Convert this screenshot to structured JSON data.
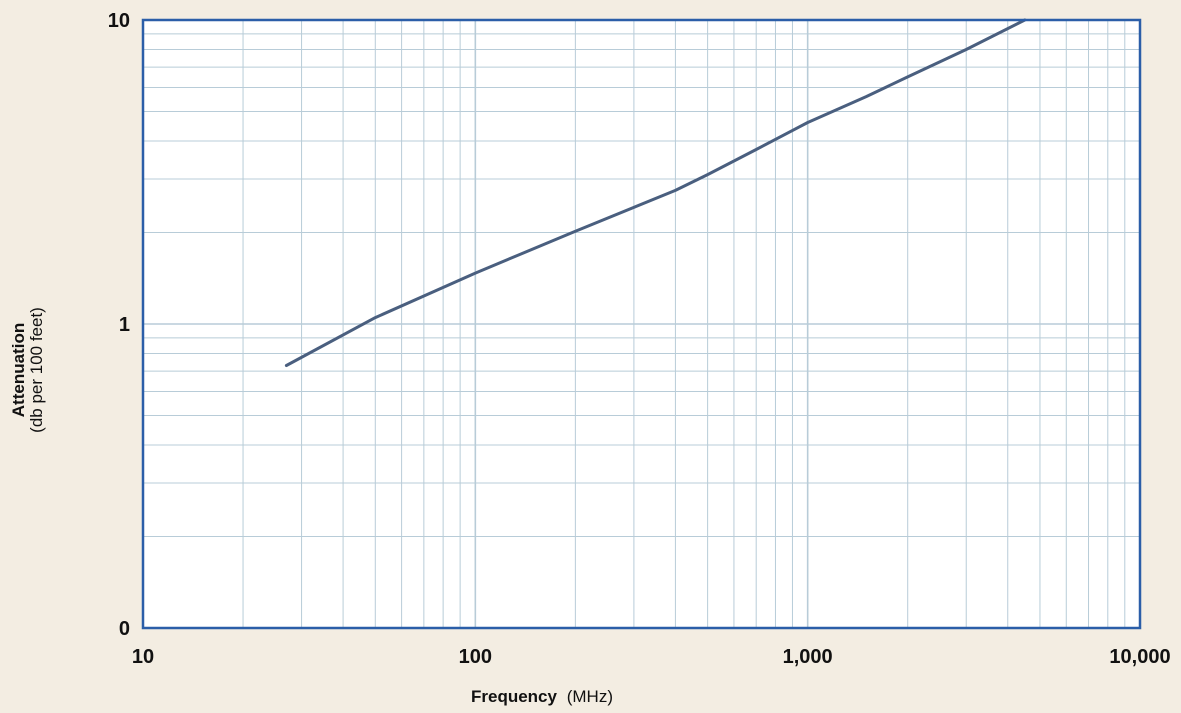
{
  "chart_data": {
    "type": "line",
    "title": "",
    "xlabel": "Frequency",
    "xlabel_unit": "(MHz)",
    "ylabel": "Attenuation",
    "ylabel_unit": "(db per 100 feet)",
    "x_scale": "log",
    "y_scale": "log",
    "xlim": [
      10,
      10000
    ],
    "ylim": [
      0.1,
      10
    ],
    "x_ticks": [
      {
        "value": 10,
        "label": "10"
      },
      {
        "value": 100,
        "label": "100"
      },
      {
        "value": 1000,
        "label": "1,000"
      },
      {
        "value": 10000,
        "label": "10,000"
      }
    ],
    "y_ticks": [
      {
        "value": 0.1,
        "label": "0"
      },
      {
        "value": 1,
        "label": "1"
      },
      {
        "value": 10,
        "label": "10"
      }
    ],
    "grid": true,
    "legend": "none",
    "series": [
      {
        "x": [
          27,
          50,
          100,
          200,
          400,
          500,
          700,
          1000,
          1500,
          2000,
          3000,
          4500
        ],
        "y": [
          0.73,
          1.05,
          1.47,
          2.02,
          2.75,
          3.1,
          3.75,
          4.6,
          5.6,
          6.5,
          8.0,
          10.0
        ]
      }
    ],
    "colors": {
      "line": "#4a5f7f",
      "frame": "#2b5ea8",
      "grid": "#b8ccd8",
      "background": "#f3ede2",
      "plot_background": "#ffffff"
    }
  }
}
